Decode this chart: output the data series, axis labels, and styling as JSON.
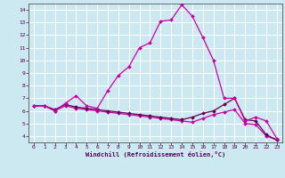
{
  "background_color": "#cce8f0",
  "grid_color": "#ffffff",
  "line_color_bright": "#cc00aa",
  "line_color_dark": "#660055",
  "xlabel": "Windchill (Refroidissement éolien,°C)",
  "xlim": [
    -0.5,
    23.5
  ],
  "ylim": [
    3.5,
    14.5
  ],
  "xticks": [
    0,
    1,
    2,
    3,
    4,
    5,
    6,
    7,
    8,
    9,
    10,
    11,
    12,
    13,
    14,
    15,
    16,
    17,
    18,
    19,
    20,
    21,
    22,
    23
  ],
  "yticks": [
    4,
    5,
    6,
    7,
    8,
    9,
    10,
    11,
    12,
    13,
    14
  ],
  "curve_main_x": [
    0,
    1,
    2,
    3,
    4,
    5,
    6,
    7,
    8,
    9,
    10,
    11,
    12,
    13,
    14,
    15,
    16,
    17,
    18,
    19,
    20,
    21,
    22,
    23
  ],
  "curve_main_y": [
    6.4,
    6.4,
    6.0,
    6.6,
    7.2,
    6.4,
    6.2,
    7.6,
    8.8,
    9.5,
    11.0,
    11.4,
    13.1,
    13.2,
    14.4,
    13.5,
    11.8,
    10.0,
    7.0,
    7.0,
    5.2,
    5.5,
    5.2,
    3.8
  ],
  "curve_flat1_x": [
    0,
    1,
    2,
    3,
    4,
    5,
    6,
    7,
    8,
    9,
    10,
    11,
    12,
    13,
    14,
    15,
    16,
    17,
    18,
    19,
    20,
    21,
    22,
    23
  ],
  "curve_flat1_y": [
    6.4,
    6.4,
    6.1,
    6.5,
    6.3,
    6.2,
    6.1,
    6.0,
    5.9,
    5.8,
    5.7,
    5.6,
    5.5,
    5.4,
    5.3,
    5.5,
    5.8,
    6.0,
    6.5,
    7.0,
    5.3,
    5.2,
    4.1,
    3.7
  ],
  "curve_flat2_x": [
    0,
    1,
    2,
    3,
    4,
    5,
    6,
    7,
    8,
    9,
    10,
    11,
    12,
    13,
    14,
    15,
    16,
    17,
    18,
    19,
    20,
    21,
    22,
    23
  ],
  "curve_flat2_y": [
    6.4,
    6.4,
    6.0,
    6.4,
    6.2,
    6.1,
    6.0,
    5.9,
    5.8,
    5.7,
    5.6,
    5.5,
    5.4,
    5.3,
    5.2,
    5.1,
    5.4,
    5.7,
    5.9,
    6.1,
    5.0,
    4.9,
    4.0,
    3.7
  ]
}
